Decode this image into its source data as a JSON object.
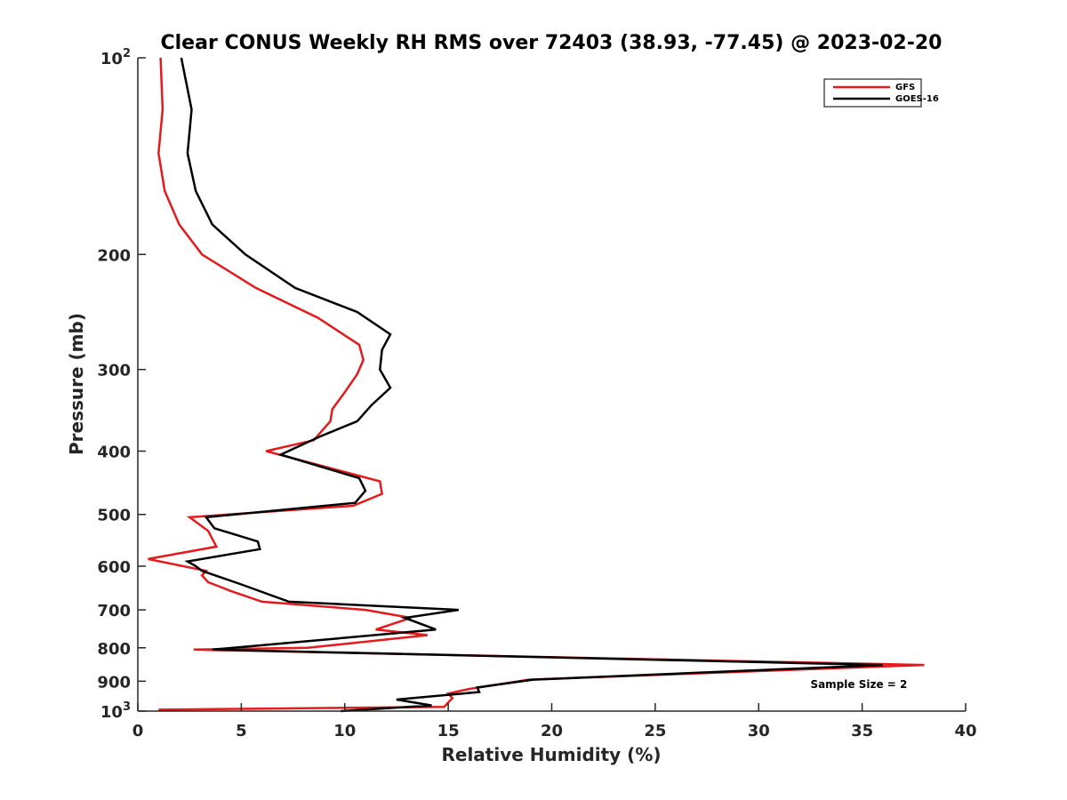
{
  "chart_data": {
    "type": "line",
    "title": "Clear CONUS Weekly RH RMS over 72403 (38.93, -77.45) @ 2023-02-20",
    "xlabel": "Relative Humidity (%)",
    "ylabel": "Pressure (mb)",
    "xlim": [
      0,
      40
    ],
    "ylim": [
      100,
      1000
    ],
    "y_scale": "log",
    "y_reversed": true,
    "x_ticks": [
      "0",
      "5",
      "10",
      "15",
      "20",
      "25",
      "30",
      "35",
      "40"
    ],
    "y_ticks": [
      {
        "value": 100,
        "base": "10",
        "exp": "2"
      },
      {
        "value": 200,
        "label": "200"
      },
      {
        "value": 300,
        "label": "300"
      },
      {
        "value": 400,
        "label": "400"
      },
      {
        "value": 500,
        "label": "500"
      },
      {
        "value": 600,
        "label": "600"
      },
      {
        "value": 700,
        "label": "700"
      },
      {
        "value": 800,
        "label": "800"
      },
      {
        "value": 900,
        "label": "900"
      },
      {
        "value": 1000,
        "base": "10",
        "exp": "3"
      }
    ],
    "grid": false,
    "legend_position": "top-right",
    "series": [
      {
        "name": "GFS",
        "color": "#e41a1c",
        "x": [
          1.1,
          1.2,
          1.0,
          1.3,
          2.0,
          3.1,
          5.7,
          8.7,
          10.7,
          10.9,
          10.6,
          10.0,
          9.4,
          9.3,
          8.5,
          6.2,
          11.7,
          11.8,
          10.4,
          2.5,
          3.4,
          3.8,
          0.5,
          3.3,
          3.1,
          3.4,
          4.5,
          6.0,
          11.0,
          13.2,
          11.5,
          14.0,
          8.2,
          2.7,
          38.0,
          18.9,
          16.0,
          15.0,
          15.2,
          14.8,
          1.0
        ],
        "y": [
          100,
          120,
          140,
          160,
          180,
          200,
          225,
          250,
          275,
          290,
          305,
          325,
          345,
          360,
          385,
          400,
          445,
          465,
          485,
          505,
          530,
          560,
          585,
          610,
          620,
          635,
          655,
          680,
          700,
          720,
          750,
          765,
          800,
          805,
          850,
          895,
          925,
          940,
          955,
          985,
          995
        ]
      },
      {
        "name": "GOES-16",
        "color": "#000000",
        "x": [
          2.1,
          2.6,
          2.4,
          2.8,
          3.6,
          5.2,
          7.6,
          10.6,
          12.2,
          11.8,
          11.7,
          12.2,
          11.3,
          10.6,
          8.8,
          6.9,
          10.7,
          11.0,
          10.5,
          3.3,
          3.7,
          5.8,
          5.9,
          2.4,
          2.8,
          3.1,
          5.0,
          7.3,
          15.5,
          12.9,
          14.4,
          9.5,
          3.6,
          36.0,
          19.1,
          16.4,
          16.5,
          12.5,
          14.2,
          9.8
        ],
        "y": [
          100,
          120,
          140,
          160,
          180,
          200,
          225,
          245,
          265,
          280,
          300,
          320,
          340,
          360,
          380,
          405,
          440,
          460,
          480,
          505,
          525,
          550,
          565,
          590,
          600,
          610,
          640,
          680,
          700,
          720,
          750,
          775,
          805,
          850,
          895,
          920,
          935,
          960,
          980,
          1000
        ]
      }
    ],
    "annotations": [
      {
        "text": "Sample Size = 2",
        "x": 32.5,
        "y": 910
      }
    ]
  }
}
